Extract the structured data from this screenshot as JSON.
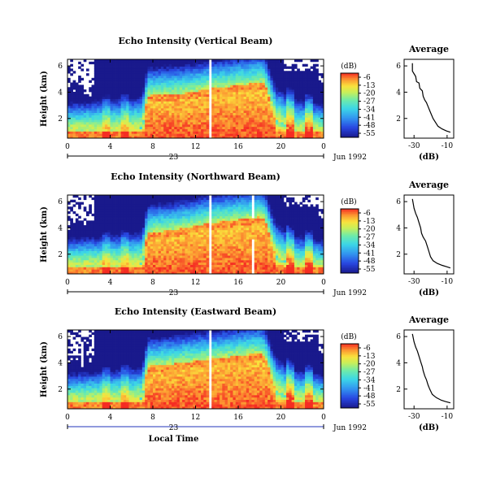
{
  "chart_data": [
    {
      "type": "heatmap",
      "title": "Echo Intensity (Vertical Beam)",
      "xlabel": "",
      "ylabel": "Height (km)",
      "xticks": [
        "0",
        "4",
        "8",
        "12",
        "16",
        "20",
        "0"
      ],
      "xlim": [
        0,
        24
      ],
      "yticks": [
        "2",
        "4",
        "6"
      ],
      "ylim": [
        0.5,
        6.5
      ],
      "day_label": "23",
      "date_label": "Jun 1992",
      "colorbar": {
        "unit": "(dB)",
        "levels": [
          "-6",
          "-13",
          "-20",
          "-27",
          "-34",
          "-41",
          "-48",
          "-55"
        ]
      },
      "layer": [
        [
          0,
          1.1
        ],
        [
          4,
          1.2
        ],
        [
          7,
          1.3
        ],
        [
          7.5,
          3.5
        ],
        [
          10,
          3.6
        ],
        [
          12,
          3.8
        ],
        [
          13,
          4.0
        ],
        [
          16,
          4.3
        ],
        [
          18,
          4.5
        ],
        [
          18.5,
          4.4
        ],
        [
          19.5,
          2.0
        ],
        [
          21,
          1.2
        ],
        [
          24,
          1.0
        ]
      ],
      "average_profile": {
        "title": "Average",
        "xlabel": "(dB)",
        "xticks": [
          "-30",
          "-10"
        ],
        "yticks": [
          "2",
          "4",
          "6"
        ],
        "xlim": [
          -36,
          -6
        ],
        "ylim": [
          0.5,
          6.5
        ],
        "points": [
          [
            -31,
            6.2
          ],
          [
            -31,
            5.6
          ],
          [
            -29,
            5.2
          ],
          [
            -28.5,
            4.8
          ],
          [
            -27,
            4.7
          ],
          [
            -26.5,
            4.3
          ],
          [
            -25,
            4.1
          ],
          [
            -24.5,
            3.7
          ],
          [
            -23.5,
            3.4
          ],
          [
            -22.5,
            3.2
          ],
          [
            -21.5,
            2.9
          ],
          [
            -20.5,
            2.6
          ],
          [
            -19.5,
            2.3
          ],
          [
            -18.5,
            2.0
          ],
          [
            -17,
            1.7
          ],
          [
            -15.5,
            1.4
          ],
          [
            -13,
            1.2
          ],
          [
            -10.5,
            1.05
          ],
          [
            -8,
            0.95
          ]
        ]
      }
    },
    {
      "type": "heatmap",
      "title": "Echo Intensity (Northward Beam)",
      "xlabel": "",
      "ylabel": "Height (km)",
      "xticks": [
        "0",
        "4",
        "8",
        "12",
        "16",
        "20",
        "0"
      ],
      "xlim": [
        0,
        24
      ],
      "yticks": [
        "2",
        "4",
        "6"
      ],
      "ylim": [
        0.5,
        6.5
      ],
      "day_label": "23",
      "date_label": "Jun 1992",
      "colorbar": {
        "unit": "(dB)",
        "levels": [
          "-6",
          "-13",
          "-20",
          "-27",
          "-34",
          "-41",
          "-48",
          "-55"
        ]
      },
      "layer": [
        [
          0,
          1.1
        ],
        [
          4,
          1.2
        ],
        [
          7,
          1.3
        ],
        [
          7.5,
          3.4
        ],
        [
          10,
          3.6
        ],
        [
          12,
          3.9
        ],
        [
          13,
          4.1
        ],
        [
          16,
          4.4
        ],
        [
          18,
          4.6
        ],
        [
          18.5,
          4.4
        ],
        [
          19.5,
          2.0
        ],
        [
          21,
          1.1
        ],
        [
          24,
          1.0
        ]
      ],
      "average_profile": {
        "title": "Average",
        "xlabel": "(dB)",
        "xticks": [
          "-30",
          "-10"
        ],
        "yticks": [
          "2",
          "4",
          "6"
        ],
        "xlim": [
          -36,
          -6
        ],
        "ylim": [
          0.5,
          6.5
        ],
        "points": [
          [
            -31,
            6.2
          ],
          [
            -30,
            5.5
          ],
          [
            -29,
            5.1
          ],
          [
            -28,
            4.8
          ],
          [
            -27,
            4.4
          ],
          [
            -26,
            4.0
          ],
          [
            -25.5,
            3.6
          ],
          [
            -24.5,
            3.3
          ],
          [
            -23,
            3.0
          ],
          [
            -22,
            2.6
          ],
          [
            -21,
            2.2
          ],
          [
            -20,
            1.8
          ],
          [
            -18.5,
            1.5
          ],
          [
            -16,
            1.3
          ],
          [
            -13,
            1.15
          ],
          [
            -10.5,
            1.05
          ],
          [
            -8,
            0.95
          ]
        ]
      }
    },
    {
      "type": "heatmap",
      "title": "Echo Intensity (Eastward Beam)",
      "xlabel": "Local Time",
      "ylabel": "Height (km)",
      "xticks": [
        "0",
        "4",
        "8",
        "12",
        "16",
        "20",
        "0"
      ],
      "xlim": [
        0,
        24
      ],
      "yticks": [
        "2",
        "4",
        "6"
      ],
      "ylim": [
        0.5,
        6.5
      ],
      "day_label": "23",
      "date_label": "Jun 1992",
      "colorbar": {
        "unit": "(dB)",
        "levels": [
          "-6",
          "-13",
          "-20",
          "-27",
          "-34",
          "-41",
          "-48",
          "-55"
        ]
      },
      "layer": [
        [
          0,
          1.1
        ],
        [
          4,
          1.2
        ],
        [
          7,
          1.3
        ],
        [
          7.5,
          3.5
        ],
        [
          10,
          3.7
        ],
        [
          12,
          3.9
        ],
        [
          13,
          4.0
        ],
        [
          16,
          4.3
        ],
        [
          18,
          4.5
        ],
        [
          18.5,
          4.3
        ],
        [
          19.5,
          2.0
        ],
        [
          21,
          1.2
        ],
        [
          24,
          1.0
        ]
      ],
      "average_profile": {
        "title": "Average",
        "xlabel": "(dB)",
        "xticks": [
          "-30",
          "-10"
        ],
        "yticks": [
          "2",
          "4",
          "6"
        ],
        "xlim": [
          -36,
          -6
        ],
        "ylim": [
          0.5,
          6.5
        ],
        "points": [
          [
            -31,
            6.2
          ],
          [
            -30,
            5.6
          ],
          [
            -29,
            5.2
          ],
          [
            -28,
            4.9
          ],
          [
            -27,
            4.5
          ],
          [
            -26,
            4.1
          ],
          [
            -25,
            3.7
          ],
          [
            -24.5,
            3.4
          ],
          [
            -23.5,
            3.0
          ],
          [
            -22.5,
            2.7
          ],
          [
            -21.5,
            2.3
          ],
          [
            -20.5,
            2.0
          ],
          [
            -19,
            1.6
          ],
          [
            -16.5,
            1.35
          ],
          [
            -13.5,
            1.15
          ],
          [
            -11,
            1.05
          ],
          [
            -8,
            0.95
          ]
        ]
      }
    }
  ]
}
